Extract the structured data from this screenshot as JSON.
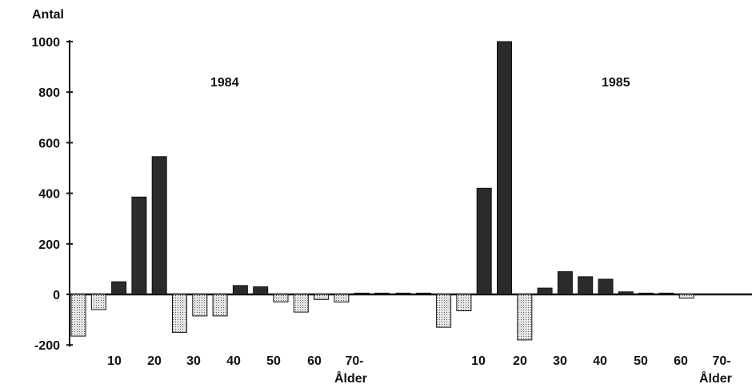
{
  "chart_data": {
    "type": "bar",
    "ylabel": "Antal",
    "xlabel": "Ålder",
    "ylim": [
      -200,
      1000
    ],
    "yticks": [
      -200,
      0,
      200,
      400,
      600,
      800,
      1000
    ],
    "grid": false,
    "colors": {
      "positive": "#2b2b2b",
      "negative": "#c8c8c8"
    },
    "panels": [
      {
        "title": "1984",
        "tick_labels": [
          "10",
          "20",
          "30",
          "40",
          "50",
          "60",
          "70-"
        ],
        "values": [
          -165,
          -60,
          50,
          385,
          545,
          -150,
          -85,
          -85,
          35,
          30,
          -30,
          -70,
          -20,
          -30,
          5,
          5
        ]
      },
      {
        "title": "1985",
        "tick_labels": [
          "10",
          "20",
          "30",
          "40",
          "50",
          "60",
          "70-"
        ],
        "values": [
          5,
          5,
          -130,
          -65,
          420,
          1000,
          -180,
          25,
          90,
          70,
          60,
          10,
          5,
          5,
          -15
        ]
      }
    ]
  }
}
